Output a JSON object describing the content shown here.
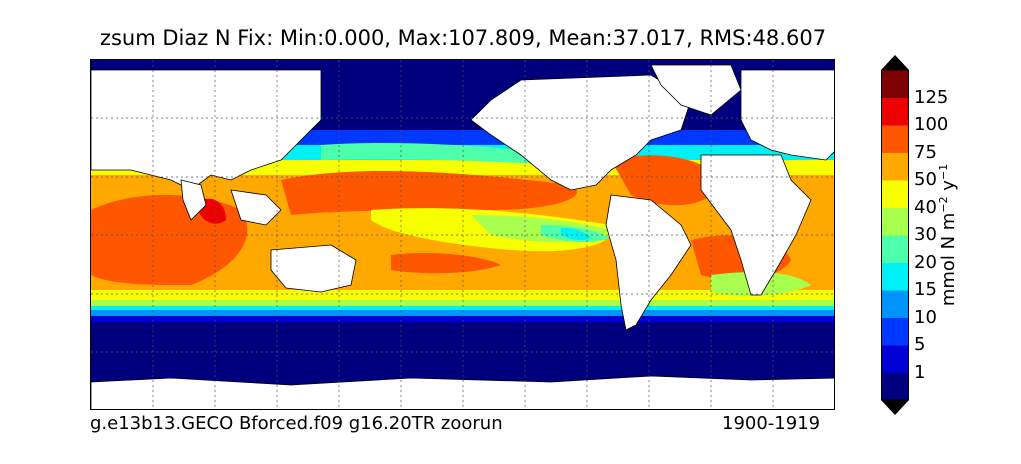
{
  "title": "zsum Diaz N Fix: Min:0.000, Max:107.809, Mean:37.017, RMS:48.607",
  "footer": {
    "run": "g.e13b13.GECO Bforced.f09 g16.20TR zoorun",
    "years": "1900-1919"
  },
  "colorbar": {
    "label": "mmol N m",
    "exp1": "−2",
    "mid": "y",
    "exp2": "−1",
    "levels": [
      "1",
      "5",
      "10",
      "15",
      "20",
      "30",
      "40",
      "50",
      "75",
      "100",
      "125"
    ],
    "colors": [
      "#00007f",
      "#0000d6",
      "#0038ff",
      "#0094ff",
      "#00f0f7",
      "#4dffaa",
      "#a8ff4e",
      "#f7ff00",
      "#ffa800",
      "#ff5700",
      "#ed0000",
      "#7f0000"
    ],
    "extend_max_color": "#000000",
    "extend_min_color": "#000000"
  },
  "map": {
    "projection": "cylindrical",
    "grid": true,
    "ocean_polar_color": "#00007f",
    "land_color": "#ffffff"
  }
}
